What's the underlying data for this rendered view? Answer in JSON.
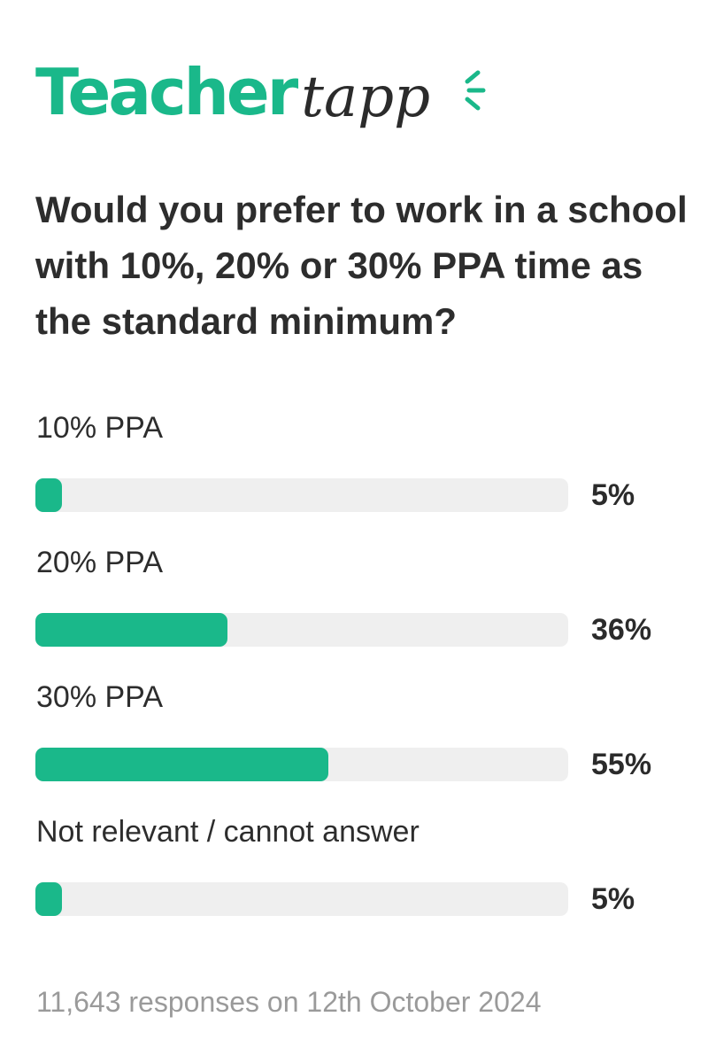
{
  "logo": {
    "teacher": "Teacher",
    "tapp": "tapp",
    "brand_color": "#1ab88a"
  },
  "question": "Would you prefer to work in a school with 10%, 20% or 30% PPA time as the standard minimum?",
  "chart_data": {
    "type": "bar",
    "orientation": "horizontal",
    "categories": [
      "10% PPA",
      "20% PPA",
      "30% PPA",
      "Not relevant / cannot answer"
    ],
    "values": [
      5,
      36,
      55,
      5
    ],
    "value_labels": [
      "5%",
      "36%",
      "55%",
      "5%"
    ],
    "unit": "%",
    "xlim": [
      0,
      100
    ],
    "bar_color": "#1ab88a",
    "track_color": "#efefef",
    "grid": false
  },
  "footer": "11,643 responses on 12th October 2024"
}
